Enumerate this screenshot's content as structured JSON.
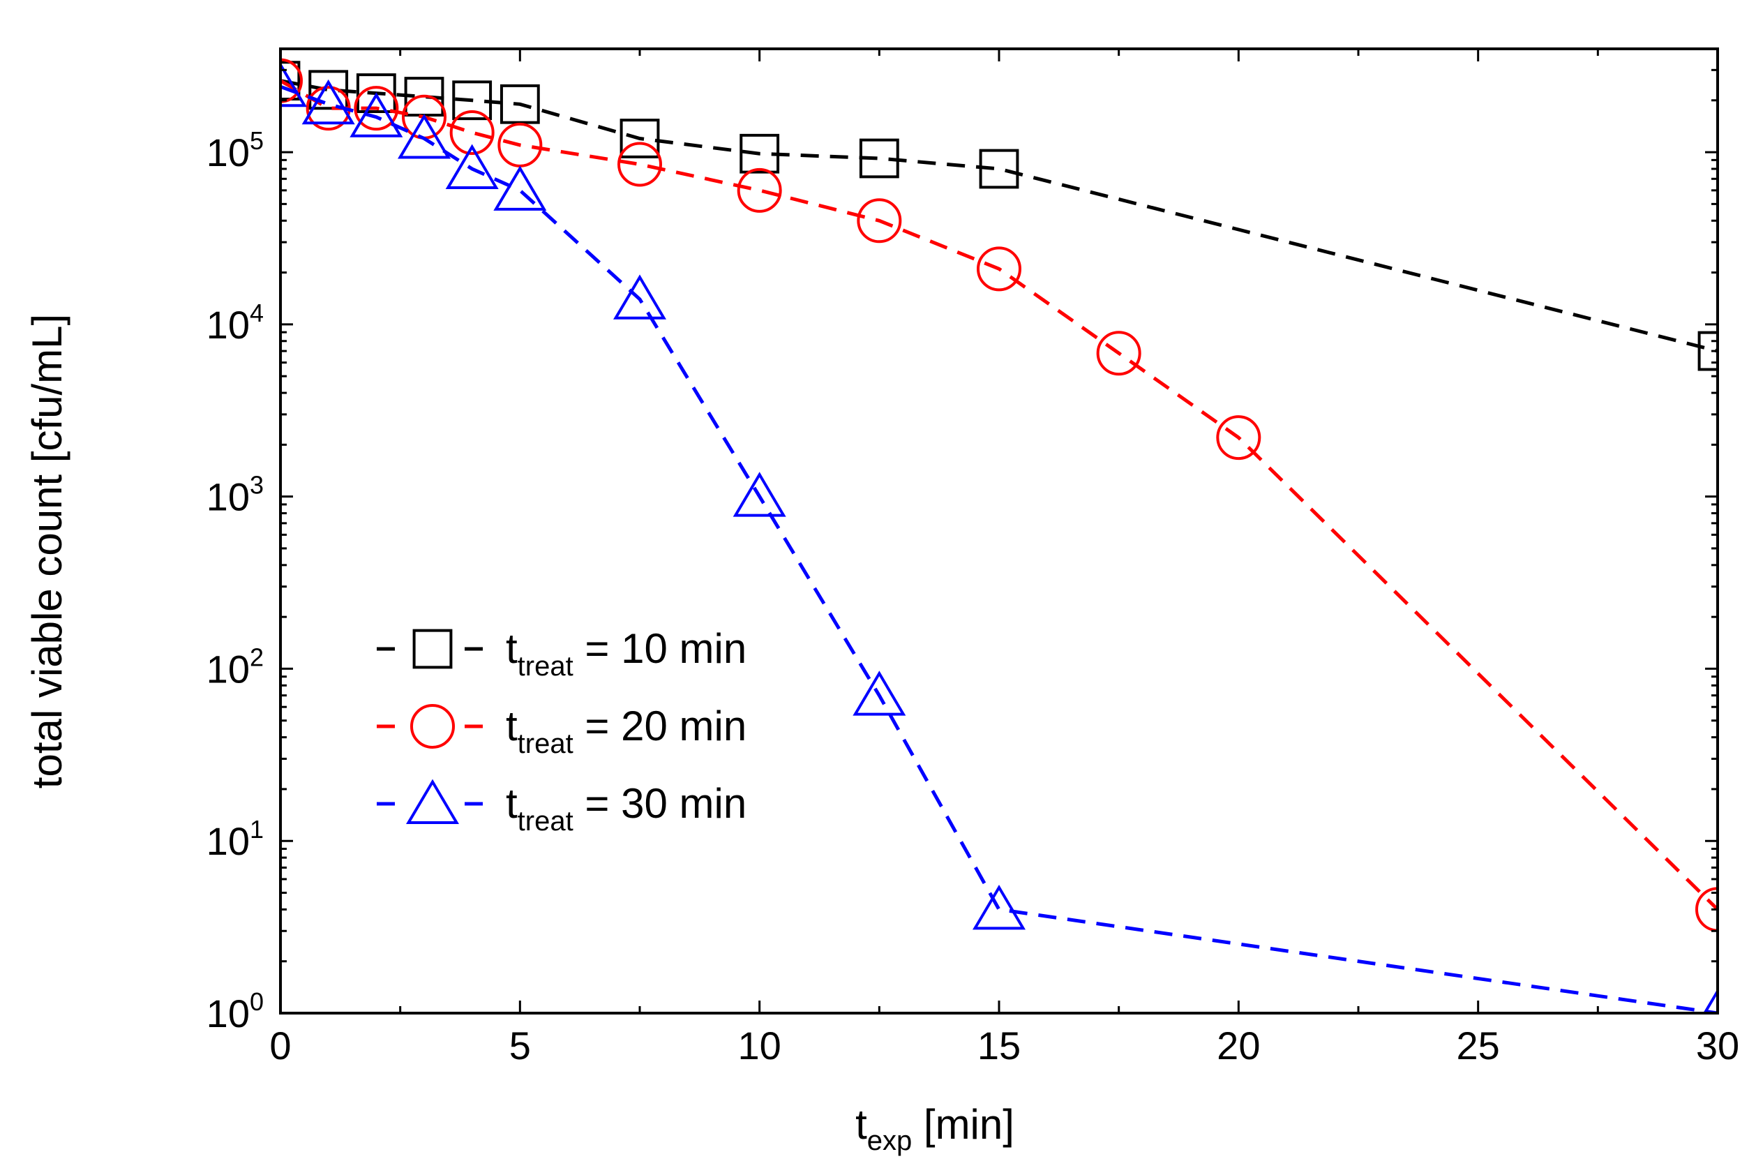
{
  "chart_data": {
    "type": "line",
    "title": "",
    "xlabel": {
      "main": "t",
      "sub": "exp",
      "rest": " [min]"
    },
    "ylabel": "total viable count [cfu/mL]",
    "xlim": [
      0,
      30
    ],
    "ylim_log10": [
      0,
      5.6
    ],
    "yscale": "log",
    "xticks": [
      0,
      5,
      10,
      15,
      20,
      25,
      30
    ],
    "yticks": [
      {
        "exp": 0,
        "base": "10",
        "sup": "0"
      },
      {
        "exp": 1,
        "base": "10",
        "sup": "1"
      },
      {
        "exp": 2,
        "base": "10",
        "sup": "2"
      },
      {
        "exp": 3,
        "base": "10",
        "sup": "3"
      },
      {
        "exp": 4,
        "base": "10",
        "sup": "4"
      },
      {
        "exp": 5,
        "base": "10",
        "sup": "5"
      }
    ],
    "legend_position": "lower-left",
    "series": [
      {
        "name": "t_treat = 10 min",
        "legend": {
          "main": "t",
          "sub": "treat",
          "rest": " = 10 min"
        },
        "color": "#000000",
        "marker": "square",
        "x": [
          0,
          1,
          2,
          3,
          4,
          5,
          7.5,
          10,
          12.5,
          15,
          30
        ],
        "y": [
          260000,
          230000,
          220000,
          210000,
          200000,
          190000,
          120000,
          98000,
          92000,
          80000,
          7000
        ]
      },
      {
        "name": "t_treat = 20 min",
        "legend": {
          "main": "t",
          "sub": "treat",
          "rest": " = 20 min"
        },
        "color": "#ff0000",
        "marker": "circle",
        "x": [
          0,
          1,
          2,
          3,
          4,
          5,
          7.5,
          10,
          12.5,
          15,
          17.5,
          20,
          30
        ],
        "y": [
          260000,
          180000,
          180000,
          160000,
          130000,
          110000,
          85000,
          60000,
          40000,
          21000,
          6800,
          2200,
          4
        ]
      },
      {
        "name": "t_treat = 30 min",
        "legend": {
          "main": "t",
          "sub": "treat",
          "rest": " = 30 min"
        },
        "color": "#0000ff",
        "marker": "triangle",
        "x": [
          0,
          1,
          2,
          3,
          4,
          5,
          7.5,
          10,
          12.5,
          15,
          30
        ],
        "y": [
          240000,
          190000,
          160000,
          120000,
          80000,
          60000,
          14000,
          1000,
          70,
          4,
          1
        ]
      }
    ]
  }
}
